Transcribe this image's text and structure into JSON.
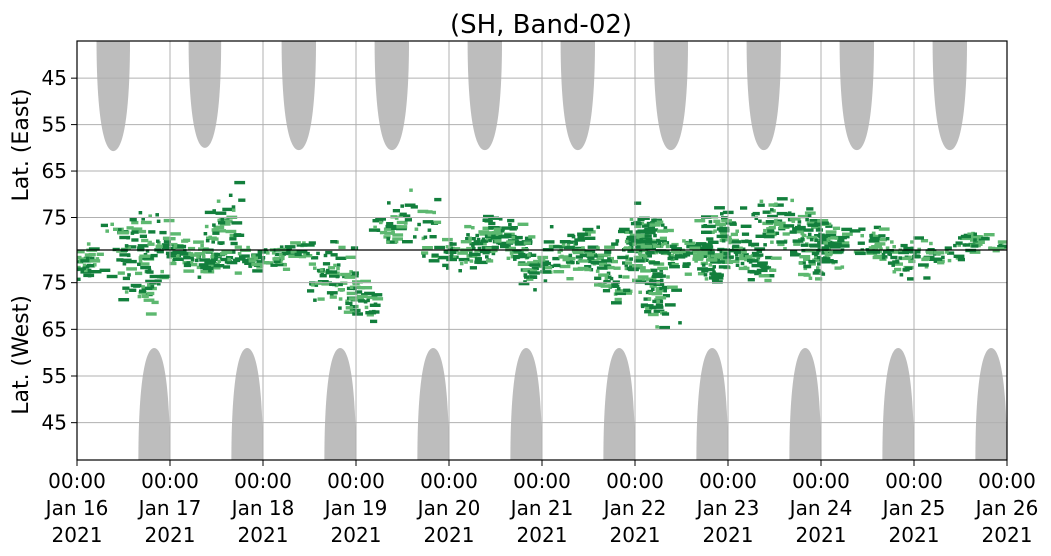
{
  "chart_data": {
    "type": "heatmap",
    "title": "(SH, Band-02)",
    "ylabel_top": "Lat. (East)",
    "ylabel_bottom": "Lat. (West)",
    "x_ticks": [
      {
        "time": "00:00",
        "date": "Jan 16",
        "year": "2021"
      },
      {
        "time": "00:00",
        "date": "Jan 17",
        "year": "2021"
      },
      {
        "time": "00:00",
        "date": "Jan 18",
        "year": "2021"
      },
      {
        "time": "00:00",
        "date": "Jan 19",
        "year": "2021"
      },
      {
        "time": "00:00",
        "date": "Jan 20",
        "year": "2021"
      },
      {
        "time": "00:00",
        "date": "Jan 21",
        "year": "2021"
      },
      {
        "time": "00:00",
        "date": "Jan 22",
        "year": "2021"
      },
      {
        "time": "00:00",
        "date": "Jan 23",
        "year": "2021"
      },
      {
        "time": "00:00",
        "date": "Jan 24",
        "year": "2021"
      },
      {
        "time": "00:00",
        "date": "Jan 25",
        "year": "2021"
      },
      {
        "time": "00:00",
        "date": "Jan 26",
        "year": "2021"
      }
    ],
    "x_range_days": [
      0,
      10
    ],
    "y_ticks_top": [
      "45",
      "55",
      "65",
      "75"
    ],
    "y_ticks_bottom": [
      "75",
      "65",
      "55",
      "45"
    ],
    "y_tick_values_top": [
      45,
      55,
      65,
      75
    ],
    "y_tick_values_bottom": [
      75,
      65,
      55,
      45
    ],
    "y_range_lat": [
      37,
      82
    ],
    "grid": true,
    "colors": {
      "dark_green": "#127f3c",
      "light_green": "#5db870",
      "gray": "#bdbdbd",
      "grid": "#b0b0b0"
    },
    "gray_lobes_top": [
      {
        "start": 0.21,
        "end": 0.57,
        "reach": 60.7
      },
      {
        "start": 1.2,
        "end": 1.55,
        "reach": 60.0
      },
      {
        "start": 2.2,
        "end": 2.57,
        "reach": 60.5
      },
      {
        "start": 3.2,
        "end": 3.57,
        "reach": 60.5
      },
      {
        "start": 4.2,
        "end": 4.57,
        "reach": 60.5
      },
      {
        "start": 5.2,
        "end": 5.57,
        "reach": 60.5
      },
      {
        "start": 6.2,
        "end": 6.57,
        "reach": 60.5
      },
      {
        "start": 7.2,
        "end": 7.57,
        "reach": 60.5
      },
      {
        "start": 8.2,
        "end": 8.57,
        "reach": 60.5
      },
      {
        "start": 9.2,
        "end": 9.57,
        "reach": 60.5
      }
    ],
    "gray_lobes_bottom": [
      {
        "start": 0.66,
        "end": 1.0,
        "reach": 61.0
      },
      {
        "start": 1.66,
        "end": 2.0,
        "reach": 61.0
      },
      {
        "start": 2.66,
        "end": 3.0,
        "reach": 61.0
      },
      {
        "start": 3.66,
        "end": 4.0,
        "reach": 61.0
      },
      {
        "start": 4.66,
        "end": 5.0,
        "reach": 61.0
      },
      {
        "start": 5.66,
        "end": 6.0,
        "reach": 61.0
      },
      {
        "start": 6.66,
        "end": 7.0,
        "reach": 61.0
      },
      {
        "start": 7.66,
        "end": 8.0,
        "reach": 61.0
      },
      {
        "start": 8.66,
        "end": 9.0,
        "reach": 61.0
      },
      {
        "start": 9.66,
        "end": 10.0,
        "reach": 61.0
      }
    ]
  }
}
